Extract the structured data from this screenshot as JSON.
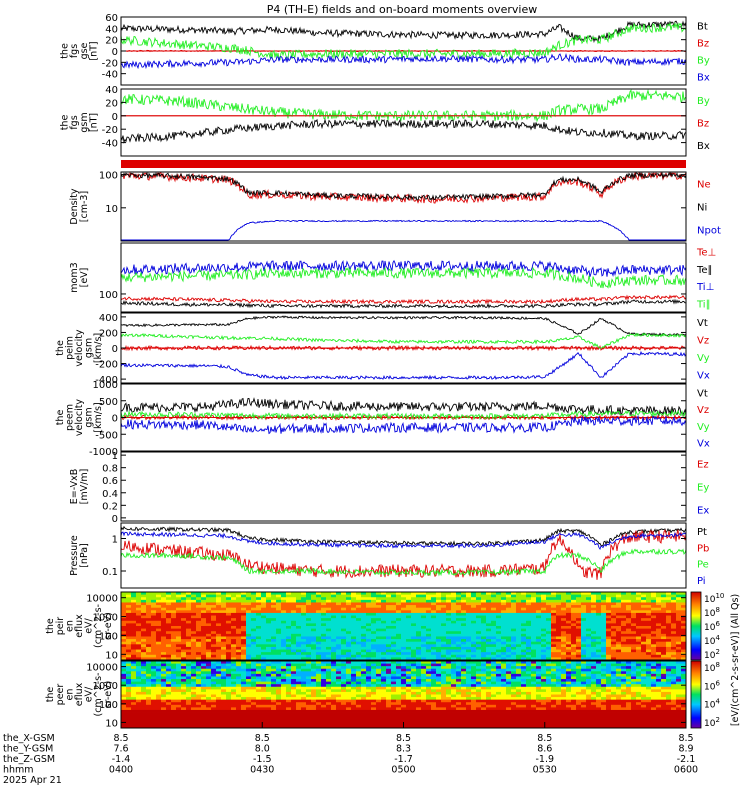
{
  "title": "P4 (TH-E) fields and on-board moments overview",
  "colors": {
    "black": "#000000",
    "red": "#dd0000",
    "green": "#22ee22",
    "blue": "#0000dd"
  },
  "chart_data": [
    {
      "id": "p1",
      "type": "line",
      "ylabel": [
        "the",
        "fgs",
        "gse",
        "[nT]"
      ],
      "ylim": [
        -60,
        60
      ],
      "ticks": [
        60,
        40,
        20,
        0,
        -20,
        -40
      ],
      "legend": [
        {
          "label": "Bt",
          "color": "black"
        },
        {
          "label": "Bz",
          "color": "red"
        },
        {
          "label": "By",
          "color": "green"
        },
        {
          "label": "Bx",
          "color": "blue"
        }
      ],
      "x_hours": [
        4.0,
        4.2,
        4.4,
        4.55,
        4.7,
        4.9,
        5.1,
        5.3,
        5.5,
        5.55,
        5.62,
        5.7,
        5.8,
        5.95,
        6.0
      ],
      "series": [
        {
          "name": "Bt",
          "color": "black",
          "values": [
            40,
            38,
            35,
            38,
            32,
            30,
            28,
            28,
            30,
            42,
            22,
            22,
            46,
            47,
            46
          ],
          "noise": 6
        },
        {
          "name": "Bz",
          "color": "red",
          "values": [
            0,
            0,
            0,
            0,
            0,
            0,
            0,
            0,
            0,
            0,
            0,
            0,
            0,
            0,
            0
          ],
          "noise": 1
        },
        {
          "name": "By",
          "color": "green",
          "values": [
            20,
            12,
            5,
            -8,
            -5,
            -5,
            -5,
            -5,
            -3,
            10,
            20,
            20,
            40,
            42,
            40
          ],
          "noise": 8
        },
        {
          "name": "Bx",
          "color": "blue",
          "values": [
            -25,
            -22,
            -20,
            -15,
            -15,
            -15,
            -13,
            -15,
            -15,
            -10,
            -15,
            -15,
            -20,
            -18,
            -18
          ],
          "noise": 6
        }
      ]
    },
    {
      "id": "p2",
      "type": "line",
      "ylabel": [
        "the",
        "fgs",
        "gsm",
        "[nT]"
      ],
      "ylim": [
        -60,
        40
      ],
      "ticks": [
        40,
        20,
        0,
        -20,
        -40
      ],
      "legend": [
        {
          "label": "By",
          "color": "green"
        },
        {
          "label": "Bz",
          "color": "red"
        },
        {
          "label": "Bx",
          "color": "black"
        }
      ],
      "x_hours": [
        4.0,
        4.2,
        4.4,
        4.55,
        4.7,
        4.9,
        5.1,
        5.3,
        5.5,
        5.55,
        5.62,
        5.7,
        5.8,
        5.95,
        6.0
      ],
      "series": [
        {
          "name": "By",
          "color": "green",
          "values": [
            25,
            22,
            12,
            5,
            2,
            0,
            0,
            0,
            0,
            8,
            10,
            10,
            30,
            30,
            28
          ],
          "noise": 8
        },
        {
          "name": "Bz",
          "color": "red",
          "values": [
            0,
            0,
            0,
            0,
            0,
            0,
            0,
            0,
            0,
            0,
            0,
            0,
            0,
            0,
            0
          ],
          "noise": 0
        },
        {
          "name": "Bx",
          "color": "black",
          "values": [
            -35,
            -30,
            -20,
            -15,
            -12,
            -12,
            -12,
            -12,
            -15,
            -20,
            -25,
            -25,
            -30,
            -30,
            -28
          ],
          "noise": 6
        }
      ]
    },
    {
      "id": "p3",
      "type": "line",
      "ylabel": [
        "Density",
        "[cm-3]"
      ],
      "scale": "log",
      "ylim": [
        1,
        120
      ],
      "ticks": [
        100,
        10
      ],
      "legend": [
        {
          "label": "Ne",
          "color": "red"
        },
        {
          "label": "Ni",
          "color": "black"
        },
        {
          "label": "Npot",
          "color": "blue"
        }
      ],
      "x_hours": [
        4.0,
        4.2,
        4.38,
        4.45,
        4.55,
        4.7,
        4.9,
        5.1,
        5.3,
        5.5,
        5.55,
        5.62,
        5.7,
        5.8,
        6.0
      ],
      "series": [
        {
          "name": "Ne",
          "color": "red",
          "values": [
            95,
            85,
            70,
            25,
            25,
            22,
            20,
            18,
            20,
            22,
            60,
            60,
            25,
            90,
            95
          ],
          "noise": 0.12
        },
        {
          "name": "Ni",
          "color": "black",
          "values": [
            98,
            90,
            75,
            28,
            28,
            24,
            22,
            20,
            22,
            25,
            70,
            70,
            28,
            95,
            98
          ],
          "noise": 0.08
        },
        {
          "name": "Npot",
          "color": "blue",
          "values": [
            1,
            1,
            1,
            3.5,
            4,
            4,
            4,
            4,
            4,
            4,
            4,
            4,
            4,
            1,
            1
          ],
          "noise": 0.02
        }
      ]
    },
    {
      "id": "p4",
      "type": "line",
      "ylabel": [
        "mom3",
        "[eV]"
      ],
      "scale": "log",
      "ylim": [
        30,
        3000
      ],
      "ticks": [
        100
      ],
      "legend": [
        {
          "label": "Te⊥",
          "color": "red"
        },
        {
          "label": "Te∥",
          "color": "black"
        },
        {
          "label": "Ti⊥",
          "color": "blue"
        },
        {
          "label": "Ti∥",
          "color": "green"
        }
      ],
      "x_hours": [
        4.0,
        4.2,
        4.4,
        4.55,
        4.7,
        4.9,
        5.1,
        5.3,
        5.5,
        5.6,
        5.7,
        5.8,
        6.0
      ],
      "series": [
        {
          "name": "Te⊥",
          "color": "red",
          "values": [
            75,
            70,
            65,
            60,
            60,
            60,
            60,
            60,
            60,
            70,
            70,
            80,
            80
          ],
          "noise": 0.05
        },
        {
          "name": "Te∥",
          "color": "black",
          "values": [
            55,
            50,
            48,
            45,
            45,
            45,
            45,
            45,
            45,
            50,
            50,
            60,
            60
          ],
          "noise": 0.05
        },
        {
          "name": "Ti⊥",
          "color": "blue",
          "values": [
            500,
            550,
            600,
            650,
            650,
            650,
            650,
            650,
            650,
            500,
            400,
            500,
            500
          ],
          "noise": 0.15
        },
        {
          "name": "Ti∥",
          "color": "green",
          "values": [
            300,
            330,
            350,
            400,
            400,
            400,
            400,
            400,
            400,
            300,
            200,
            250,
            250
          ],
          "noise": 0.15
        }
      ]
    },
    {
      "id": "p5",
      "type": "line",
      "ylabel": [
        "the",
        "peim",
        "velocity",
        "gsm",
        "[km/s]"
      ],
      "ylim": [
        -450,
        450
      ],
      "ticks": [
        400,
        200,
        0,
        -200,
        -400
      ],
      "legend": [
        {
          "label": "Vt",
          "color": "black"
        },
        {
          "label": "Vz",
          "color": "red"
        },
        {
          "label": "Vy",
          "color": "green"
        },
        {
          "label": "Vx",
          "color": "blue"
        }
      ],
      "x_hours": [
        4.0,
        4.3,
        4.38,
        4.45,
        4.55,
        4.7,
        5.0,
        5.3,
        5.5,
        5.55,
        5.62,
        5.7,
        5.8,
        6.0
      ],
      "series": [
        {
          "name": "Vt",
          "color": "black",
          "values": [
            290,
            300,
            300,
            380,
            400,
            390,
            390,
            390,
            380,
            300,
            180,
            380,
            180,
            170
          ],
          "noise": 15
        },
        {
          "name": "Vz",
          "color": "red",
          "values": [
            0,
            0,
            0,
            0,
            0,
            0,
            0,
            0,
            0,
            0,
            0,
            0,
            0,
            0
          ],
          "noise": 25
        },
        {
          "name": "Vy",
          "color": "green",
          "values": [
            170,
            140,
            130,
            130,
            120,
            100,
            80,
            80,
            80,
            100,
            140,
            0,
            170,
            160
          ],
          "noise": 20
        },
        {
          "name": "Vx",
          "color": "blue",
          "values": [
            -220,
            -230,
            -240,
            -350,
            -380,
            -380,
            -380,
            -380,
            -370,
            -250,
            -70,
            -380,
            -70,
            -80
          ],
          "noise": 20
        }
      ]
    },
    {
      "id": "p6",
      "type": "line",
      "ylabel": [
        "the",
        "peem",
        "velocity",
        "gsm",
        "[km/s]"
      ],
      "ylim": [
        -1000,
        1000
      ],
      "ticks": [
        1000,
        500,
        0,
        -500,
        -1000
      ],
      "legend": [
        {
          "label": "Vt",
          "color": "black"
        },
        {
          "label": "Vz",
          "color": "red"
        },
        {
          "label": "Vy",
          "color": "green"
        },
        {
          "label": "Vx",
          "color": "blue"
        }
      ],
      "x_hours": [
        4.0,
        4.3,
        4.45,
        4.55,
        4.7,
        5.0,
        5.3,
        5.5,
        5.62,
        5.8,
        6.0
      ],
      "series": [
        {
          "name": "Vt",
          "color": "black",
          "values": [
            300,
            320,
            450,
            400,
            350,
            320,
            320,
            350,
            250,
            200,
            200
          ],
          "noise": 140
        },
        {
          "name": "Vz",
          "color": "red",
          "values": [
            0,
            0,
            0,
            0,
            0,
            0,
            0,
            0,
            0,
            0,
            0
          ],
          "noise": 60
        },
        {
          "name": "Vy",
          "color": "green",
          "values": [
            100,
            80,
            60,
            50,
            50,
            40,
            40,
            50,
            100,
            120,
            120
          ],
          "noise": 80
        },
        {
          "name": "Vx",
          "color": "blue",
          "values": [
            -200,
            -220,
            -380,
            -350,
            -320,
            -300,
            -300,
            -300,
            -100,
            -100,
            -100
          ],
          "noise": 140
        }
      ]
    },
    {
      "id": "p7",
      "type": "line",
      "ylabel": [
        "E=-VxB",
        "[mV/m]"
      ],
      "ylim": [
        -0.05,
        1.05
      ],
      "ticks": [
        1.0,
        0.8,
        0.6,
        0.4,
        0.2,
        0.0
      ],
      "legend": [
        {
          "label": "Ez",
          "color": "red"
        },
        {
          "label": "Ey",
          "color": "green"
        },
        {
          "label": "Ex",
          "color": "blue"
        }
      ],
      "series": []
    },
    {
      "id": "p8",
      "type": "line",
      "ylabel": [
        "Pressure",
        "[nPa]"
      ],
      "scale": "log",
      "ylim": [
        0.03,
        3
      ],
      "ticks": [
        1.0,
        0.1
      ],
      "legend": [
        {
          "label": "Pt",
          "color": "black"
        },
        {
          "label": "Pb",
          "color": "red"
        },
        {
          "label": "Pe",
          "color": "green"
        },
        {
          "label": "Pi",
          "color": "blue"
        }
      ],
      "x_hours": [
        4.0,
        4.2,
        4.38,
        4.45,
        4.55,
        4.7,
        4.9,
        5.1,
        5.3,
        5.5,
        5.55,
        5.62,
        5.7,
        5.8,
        6.0
      ],
      "series": [
        {
          "name": "Pt",
          "color": "black",
          "values": [
            2.0,
            1.9,
            1.8,
            1.0,
            0.9,
            0.8,
            0.75,
            0.7,
            0.7,
            0.9,
            1.7,
            1.7,
            0.6,
            1.6,
            1.8
          ],
          "noise": 0.06
        },
        {
          "name": "Pb",
          "color": "red",
          "values": [
            0.6,
            0.4,
            0.3,
            0.15,
            0.12,
            0.1,
            0.1,
            0.1,
            0.1,
            0.12,
            0.9,
            0.1,
            0.08,
            1.1,
            1.2
          ],
          "noise": 0.2
        },
        {
          "name": "Pe",
          "color": "green",
          "values": [
            0.3,
            0.3,
            0.25,
            0.1,
            0.1,
            0.1,
            0.09,
            0.09,
            0.09,
            0.1,
            0.3,
            0.3,
            0.1,
            0.4,
            0.4
          ],
          "noise": 0.08
        },
        {
          "name": "Pi",
          "color": "blue",
          "values": [
            1.4,
            1.3,
            1.2,
            0.8,
            0.7,
            0.65,
            0.6,
            0.6,
            0.6,
            0.8,
            1.3,
            1.3,
            0.5,
            1.2,
            1.3
          ],
          "noise": 0.06
        }
      ]
    },
    {
      "id": "p9",
      "type": "heatmap",
      "ylabel": [
        "the",
        "peir",
        "en",
        "eflux",
        "eV/",
        "(cm^2-s-",
        "sr-eV)"
      ],
      "scale": "log",
      "ylim": [
        5,
        20000
      ],
      "ticks": [
        10000,
        1000,
        100,
        10
      ],
      "colorbar": {
        "label": "[eV/(cm^2-s-sr-eV)] (All Qs)",
        "ticks": [
          "10^10",
          "10^8",
          "10^6",
          "10^4",
          "10^2"
        ]
      }
    },
    {
      "id": "p10",
      "type": "heatmap",
      "ylabel": [
        "the",
        "peer",
        "en",
        "eflux",
        "eV/",
        "(cm^2-s-",
        "sr-eV)"
      ],
      "scale": "log",
      "ylim": [
        5,
        20000
      ],
      "ticks": [
        10000,
        1000,
        100,
        10
      ],
      "colorbar": {
        "label": "[eV/(cm^2-s-sr-eV)] (All Qs)",
        "ticks": [
          "10^8",
          "10^6",
          "10^4",
          "10^2"
        ]
      }
    }
  ],
  "xaxis": {
    "range_hours": [
      4.0,
      6.0
    ],
    "tick_hours": [
      4.0,
      4.5,
      5.0,
      5.5,
      6.0
    ],
    "rows": [
      {
        "label": "the_X-GSM",
        "values": [
          "8.5",
          "8.5",
          "8.5",
          "8.5",
          "8.5"
        ]
      },
      {
        "label": "the_Y-GSM",
        "values": [
          "7.6",
          "8.0",
          "8.3",
          "8.6",
          "8.9"
        ]
      },
      {
        "label": "the_Z-GSM",
        "values": [
          "-1.4",
          "-1.5",
          "-1.7",
          "-1.9",
          "-2.1"
        ]
      },
      {
        "label": "hhmm",
        "values": [
          "0400",
          "0430",
          "0500",
          "0530",
          "0600"
        ]
      }
    ],
    "date": "2025 Apr 21"
  }
}
